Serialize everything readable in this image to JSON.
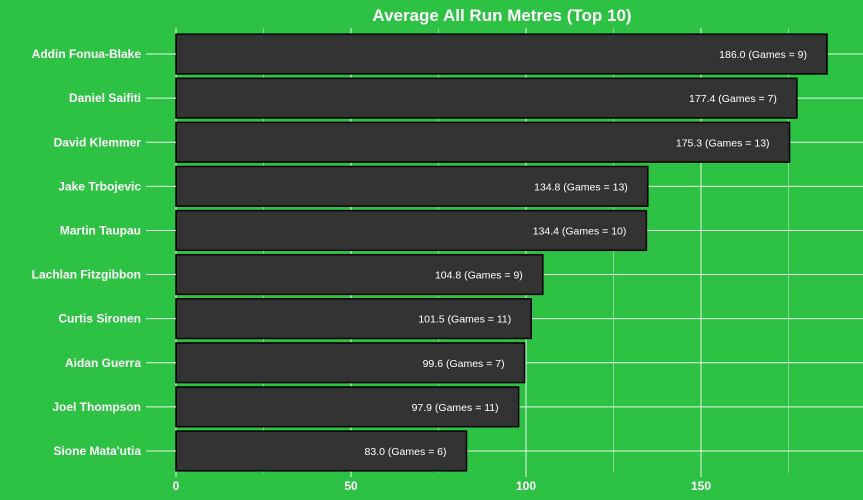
{
  "chart_data": {
    "type": "bar",
    "orientation": "horizontal",
    "title": "Average All Run Metres (Top 10)",
    "xlabel": "",
    "ylabel": "",
    "categories": [
      "Addin Fonua-Blake",
      "Daniel Saifiti",
      "David Klemmer",
      "Jake Trbojevic",
      "Martin Taupau",
      "Lachlan Fitzgibbon",
      "Curtis Sironen",
      "Aidan Guerra",
      "Joel Thompson",
      "Sione Mata'utia"
    ],
    "values": [
      186.0,
      177.4,
      175.3,
      134.8,
      134.4,
      104.8,
      101.5,
      99.6,
      97.9,
      83.0
    ],
    "data_labels": [
      "186.0 (Games = 9)",
      "177.4 (Games = 7)",
      "175.3 (Games = 13)",
      "134.8 (Games = 13)",
      "134.4 (Games = 10)",
      "104.8 (Games = 9)",
      "101.5 (Games = 11)",
      "99.6 (Games = 7)",
      "97.9 (Games = 11)",
      "83.0 (Games = 6)"
    ],
    "x_ticks": [
      0,
      50,
      100,
      150
    ],
    "x_tick_labels": [
      "0",
      "50",
      "100",
      "150"
    ],
    "xlim": [
      0,
      195
    ],
    "grid": true,
    "colors": {
      "background": "#2ec244",
      "bar_fill": "#333333",
      "bar_stroke": "#000000",
      "text": "#ffffff",
      "grid": "#e6f7e8"
    }
  }
}
